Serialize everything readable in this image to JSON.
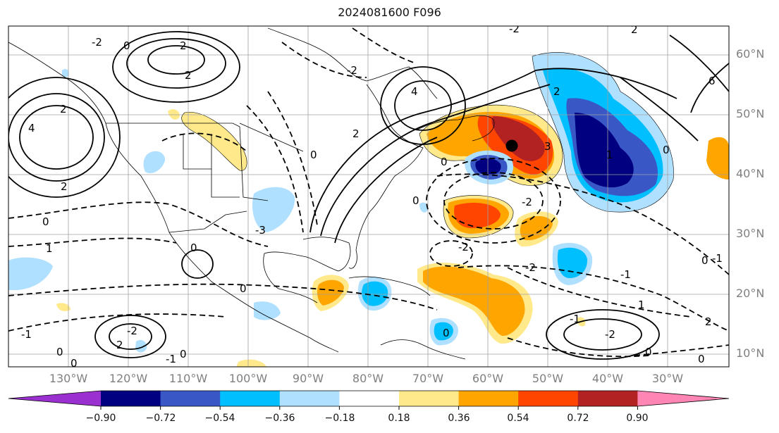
{
  "title": "2024081600 F096",
  "lat_labels": [
    "60°N",
    "50°N",
    "40°N",
    "30°N",
    "20°N",
    "10°N"
  ],
  "lon_labels": [
    "130°W",
    "120°W",
    "110°W",
    "100°W",
    "90°W",
    "80°W",
    "70°W",
    "60°W",
    "50°W",
    "40°W",
    "30°W"
  ],
  "colorbar": {
    "ticks": [
      "−0.90",
      "−0.72",
      "−0.54",
      "−0.36",
      "−0.18",
      "0.18",
      "0.36",
      "0.54",
      "0.72",
      "0.90"
    ],
    "colors": {
      "under": "#9b30d0",
      "bins": [
        "#000080",
        "#3a57c6",
        "#00bfff",
        "#b0e0ff",
        "#ffffff",
        "#ffe98a",
        "#ffa500",
        "#ff4500",
        "#b22222"
      ],
      "over": "#ff85b5"
    }
  },
  "contour_labels": [
    {
      "text": "2"
    },
    {
      "text": "0"
    },
    {
      "text": "2"
    },
    {
      "text": "4"
    },
    {
      "text": "-2"
    },
    {
      "text": "0"
    },
    {
      "text": "2"
    },
    {
      "text": "-2"
    },
    {
      "text": "0"
    },
    {
      "text": "-2"
    },
    {
      "text": "1"
    },
    {
      "text": "-1"
    },
    {
      "text": "0"
    },
    {
      "text": "-3"
    },
    {
      "text": "0"
    },
    {
      "text": "4"
    },
    {
      "text": "2"
    },
    {
      "text": "-2"
    },
    {
      "text": "0"
    },
    {
      "text": "2"
    },
    {
      "text": "0"
    },
    {
      "text": "3"
    },
    {
      "text": "-2"
    },
    {
      "text": "2"
    },
    {
      "text": "0"
    },
    {
      "text": "-2"
    },
    {
      "text": "2"
    },
    {
      "text": "0"
    },
    {
      "text": "1"
    },
    {
      "text": "-2"
    },
    {
      "text": "0"
    },
    {
      "text": "-1"
    },
    {
      "text": "0"
    },
    {
      "text": "6"
    },
    {
      "text": "-1"
    },
    {
      "text": "-1"
    },
    {
      "text": "0"
    },
    {
      "text": "1"
    },
    {
      "text": "2"
    },
    {
      "text": "0"
    },
    {
      "text": "-1"
    },
    {
      "text": "2"
    },
    {
      "text": "0"
    },
    {
      "text": "-2"
    },
    {
      "text": "0"
    }
  ],
  "marker": {
    "name": "black-dot"
  }
}
